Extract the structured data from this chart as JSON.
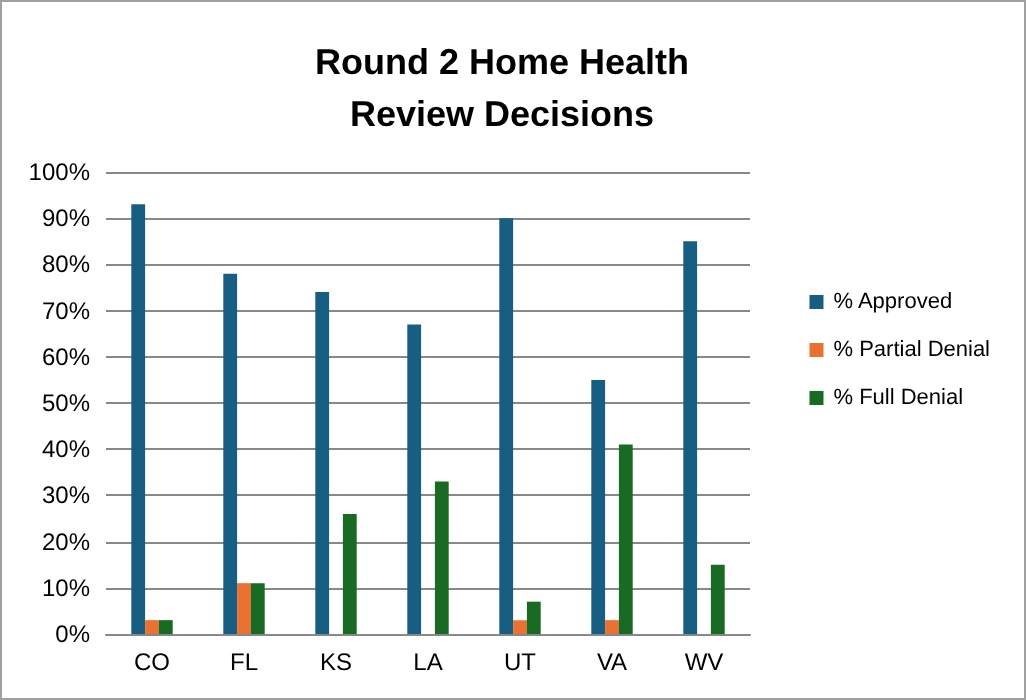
{
  "chart_data": {
    "type": "bar",
    "title": "Round 2 Home Health\nReview Decisions",
    "categories": [
      "CO",
      "FL",
      "KS",
      "LA",
      "UT",
      "VA",
      "WV"
    ],
    "series": [
      {
        "name": "% Approved",
        "color": "#175e82",
        "values": [
          93,
          78,
          74,
          67,
          90,
          55,
          85
        ]
      },
      {
        "name": "% Partial Denial",
        "color": "#e97132",
        "values": [
          3,
          11,
          0,
          0,
          3,
          3,
          0
        ]
      },
      {
        "name": "% Full Denial",
        "color": "#196b24",
        "values": [
          3,
          11,
          26,
          33,
          7,
          41,
          15
        ]
      }
    ],
    "ylim": [
      0,
      100
    ],
    "yticks": [
      {
        "value": 0,
        "label": "0%"
      },
      {
        "value": 10,
        "label": "10%"
      },
      {
        "value": 20,
        "label": "20%"
      },
      {
        "value": 30,
        "label": "30%"
      },
      {
        "value": 40,
        "label": "40%"
      },
      {
        "value": 50,
        "label": "50%"
      },
      {
        "value": 60,
        "label": "60%"
      },
      {
        "value": 70,
        "label": "70%"
      },
      {
        "value": 80,
        "label": "80%"
      },
      {
        "value": 90,
        "label": "90%"
      },
      {
        "value": 100,
        "label": "100%"
      }
    ],
    "grid": "y",
    "legend": "right"
  }
}
